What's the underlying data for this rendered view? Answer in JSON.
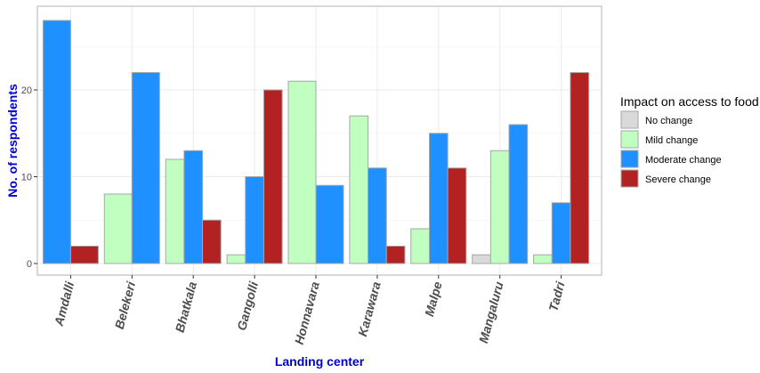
{
  "chart_data": {
    "type": "bar",
    "title": "",
    "xlabel": "Landing center",
    "ylabel": "No. of respondents",
    "ylim": [
      0,
      28.5
    ],
    "yticks": [
      0,
      10,
      20
    ],
    "grid": true,
    "legend_position": "right",
    "categories": [
      "Amdalli",
      "Belekeri",
      "Bhatkala",
      "Gangolli",
      "Honnavara",
      "Karawara",
      "Malpe",
      "Mangaluru",
      "Tadri"
    ],
    "legend_title": "Impact on access to food",
    "series": [
      {
        "name": "No change",
        "color": "#d9d9d9",
        "values": [
          0,
          0,
          0,
          0,
          0,
          0,
          0,
          1,
          0
        ]
      },
      {
        "name": "Mild change",
        "color": "#c1ffc1",
        "values": [
          0,
          8,
          12,
          1,
          21,
          17,
          4,
          13,
          1
        ]
      },
      {
        "name": "Moderate change",
        "color": "#1e90ff",
        "values": [
          28,
          22,
          13,
          10,
          9,
          11,
          15,
          16,
          7
        ]
      },
      {
        "name": "Severe change",
        "color": "#b22222",
        "values": [
          2,
          0,
          5,
          20,
          0,
          2,
          11,
          0,
          22
        ]
      }
    ],
    "label_color": "#0000cd"
  }
}
